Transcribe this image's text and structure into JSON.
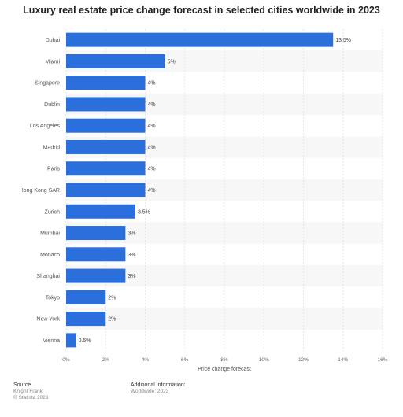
{
  "chart_data": {
    "type": "bar",
    "orientation": "horizontal",
    "title": "Luxury real estate price change forecast in selected cities worldwide in 2023",
    "xlabel": "Price change forecast",
    "ylabel": "",
    "categories": [
      "Dubai",
      "Miami",
      "Singapore",
      "Dublin",
      "Los Angeles",
      "Madrid",
      "Paris",
      "Hong Kong SAR",
      "Zurich",
      "Mumbai",
      "Monaco",
      "Shanghai",
      "Tokyo",
      "New York",
      "Vienna"
    ],
    "values": [
      13.5,
      5,
      4,
      4,
      4,
      4,
      4,
      4,
      3.5,
      3,
      3,
      3,
      2,
      2,
      0.5
    ],
    "value_labels": [
      "13.5%",
      "5%",
      "4%",
      "4%",
      "4%",
      "4%",
      "4%",
      "4%",
      "3.5%",
      "3%",
      "3%",
      "3%",
      "2%",
      "2%",
      "0.5%"
    ],
    "xlim": [
      0,
      16
    ],
    "xticks": [
      "0%",
      "2%",
      "4%",
      "6%",
      "8%",
      "10%",
      "12%",
      "14%",
      "16%"
    ],
    "grid": true,
    "bar_color": "#2a6fdb"
  },
  "footer": {
    "source_heading": "Source",
    "source_lines": [
      "Knight Frank",
      "© Statista 2023"
    ],
    "info_heading": "Additional Information:",
    "info_lines": [
      "Worldwide; 2023"
    ]
  }
}
